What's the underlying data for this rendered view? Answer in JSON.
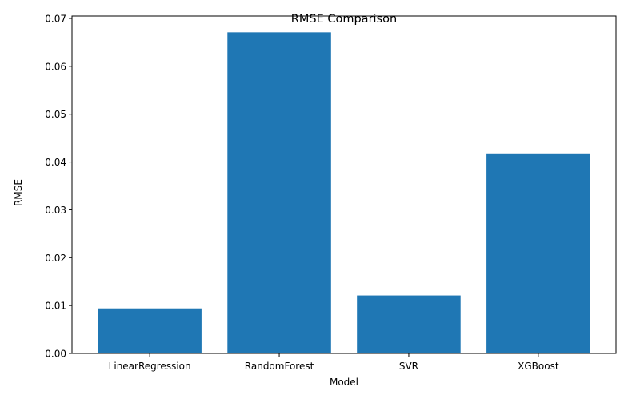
{
  "chart_data": {
    "type": "bar",
    "title": "RMSE Comparison",
    "xlabel": "Model",
    "ylabel": "RMSE",
    "categories": [
      "LinearRegression",
      "RandomForest",
      "SVR",
      "XGBoost"
    ],
    "values": [
      0.0094,
      0.0671,
      0.0121,
      0.0418
    ],
    "ylim": [
      0,
      0.0705
    ],
    "yticks": [
      0.0,
      0.01,
      0.02,
      0.03,
      0.04,
      0.05,
      0.06,
      0.07
    ],
    "ytick_labels": [
      "0.00",
      "0.01",
      "0.02",
      "0.03",
      "0.04",
      "0.05",
      "0.06",
      "0.07"
    ],
    "bar_color": "#1f77b4",
    "grid": false,
    "legend": null
  }
}
